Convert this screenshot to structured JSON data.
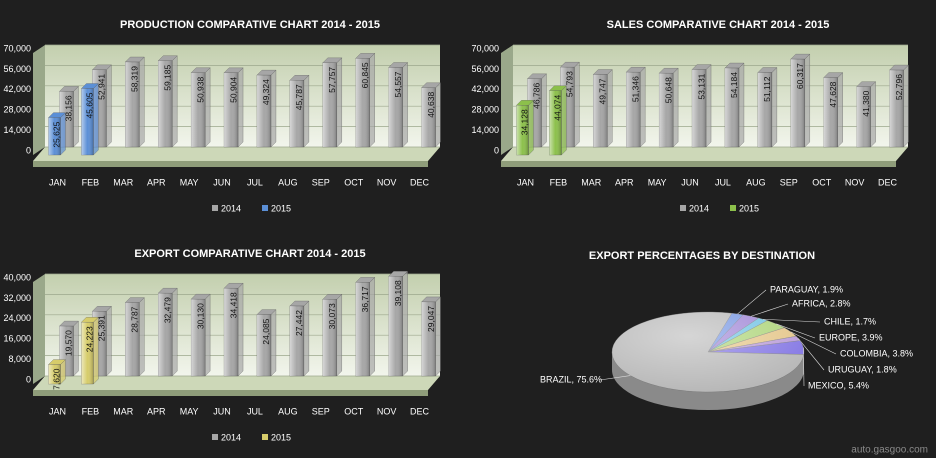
{
  "chart_data": [
    {
      "type": "bar",
      "title": "PRODUCTION COMPARATIVE CHART 2014 - 2015",
      "categories": [
        "JAN",
        "FEB",
        "MAR",
        "APR",
        "MAY",
        "JUN",
        "JUL",
        "AUG",
        "SEP",
        "OCT",
        "NOV",
        "DEC"
      ],
      "series": [
        {
          "name": "2014",
          "color": "#a6a6a6",
          "values": [
            38156,
            52941,
            58319,
            59185,
            50938,
            50904,
            49324,
            45787,
            57757,
            60845,
            54557,
            40638
          ],
          "value_labels": [
            "38,156",
            "52,941",
            "58,319",
            "59,185",
            "50,938",
            "50,904",
            "49,324",
            "45,787",
            "57,757",
            "60,845",
            "54,557",
            "40,638"
          ]
        },
        {
          "name": "2015",
          "color": "#5b8fd6",
          "values": [
            25625,
            45605,
            null,
            null,
            null,
            null,
            null,
            null,
            null,
            null,
            null,
            null
          ],
          "value_labels": [
            "25,625",
            "45,605",
            null,
            null,
            null,
            null,
            null,
            null,
            null,
            null,
            null,
            null
          ]
        }
      ],
      "ylim": [
        0,
        70000
      ],
      "yticks": [
        0,
        {
          "value": 14000,
          "label": "14,000"
        },
        {
          "value": 28000,
          "label": "28,000"
        },
        {
          "value": 42000,
          "label": "42,000"
        },
        {
          "value": 56000,
          "label": "56,000"
        },
        {
          "value": 70000,
          "label": "70,000"
        }
      ],
      "grid": true,
      "legend": "bottom"
    },
    {
      "type": "bar",
      "title": "SALES COMPARATIVE CHART 2014 - 2015",
      "categories": [
        "JAN",
        "FEB",
        "MAR",
        "APR",
        "MAY",
        "JUN",
        "JUL",
        "AUG",
        "SEP",
        "OCT",
        "NOV",
        "DEC"
      ],
      "series": [
        {
          "name": "2014",
          "color": "#a6a6a6",
          "values": [
            46786,
            54793,
            49747,
            51346,
            50648,
            53131,
            54184,
            51112,
            60317,
            47628,
            41380,
            52796
          ],
          "value_labels": [
            "46,786",
            "54,793",
            "49,747",
            "51,346",
            "50,648",
            "53,131",
            "54,184",
            "51,112",
            "60,317",
            "47,628",
            "41,380",
            "52,796"
          ]
        },
        {
          "name": "2015",
          "color": "#8cc04b",
          "values": [
            34128,
            44074,
            null,
            null,
            null,
            null,
            null,
            null,
            null,
            null,
            null,
            null
          ],
          "value_labels": [
            "34,128",
            "44,074",
            null,
            null,
            null,
            null,
            null,
            null,
            null,
            null,
            null,
            null
          ]
        }
      ],
      "ylim": [
        0,
        70000
      ],
      "yticks": [
        0,
        {
          "value": 14000,
          "label": "14,000"
        },
        {
          "value": 28000,
          "label": "28,000"
        },
        {
          "value": 42000,
          "label": "42,000"
        },
        {
          "value": 56000,
          "label": "56,000"
        },
        {
          "value": 70000,
          "label": "70,000"
        }
      ],
      "grid": true,
      "legend": "bottom"
    },
    {
      "type": "bar",
      "title": "EXPORT COMPARATIVE CHART 2014 - 2015",
      "categories": [
        "JAN",
        "FEB",
        "MAR",
        "APR",
        "MAY",
        "JUN",
        "JUL",
        "AUG",
        "SEP",
        "OCT",
        "NOV",
        "DEC"
      ],
      "series": [
        {
          "name": "2014",
          "color": "#a6a6a6",
          "values": [
            19570,
            25391,
            28787,
            32479,
            30130,
            34418,
            24085,
            27442,
            30073,
            36717,
            39108,
            29047
          ],
          "value_labels": [
            "19,570",
            "25,391",
            "28,787",
            "32,479",
            "30,130",
            "34,418",
            "24,085",
            "27,442",
            "30,073",
            "36,717",
            "39,108",
            "29,047"
          ]
        },
        {
          "name": "2015",
          "color": "#d6cc6a",
          "values": [
            7620,
            24223,
            null,
            null,
            null,
            null,
            null,
            null,
            null,
            null,
            null,
            null
          ],
          "value_labels": [
            "7,620",
            "24,223",
            null,
            null,
            null,
            null,
            null,
            null,
            null,
            null,
            null,
            null
          ]
        }
      ],
      "ylim": [
        0,
        40000
      ],
      "yticks": [
        0,
        {
          "value": 8000,
          "label": "8,000"
        },
        {
          "value": 16000,
          "label": "16,000"
        },
        {
          "value": 24000,
          "label": "24,000"
        },
        {
          "value": 32000,
          "label": "32,000"
        },
        {
          "value": 40000,
          "label": "40,000"
        }
      ],
      "grid": true,
      "legend": "bottom"
    },
    {
      "type": "pie",
      "title": "EXPORT PERCENTAGES BY DESTINATION",
      "values": [
        1.9,
        2.8,
        1.7,
        3.9,
        3.8,
        1.8,
        5.4,
        75.6
      ],
      "value_labels": [
        "PARAGUAY, 1.9%",
        "AFRICA, 2.8%",
        "CHILE, 1.7%",
        "EUROPE, 3.9%",
        "COLOMBIA, 3.8%",
        "URUGUAY, 1.8%",
        "MEXICO, 5.4%",
        "BRAZIL, 75.6%"
      ],
      "colors": [
        "#6f90e0",
        "#9a7fd4",
        "#6cc0e2",
        "#a9d272",
        "#e3c383",
        "#b596d6",
        "#7d6fe2",
        "#b4b4b4"
      ]
    }
  ],
  "watermark": "auto.gasgoo.com"
}
